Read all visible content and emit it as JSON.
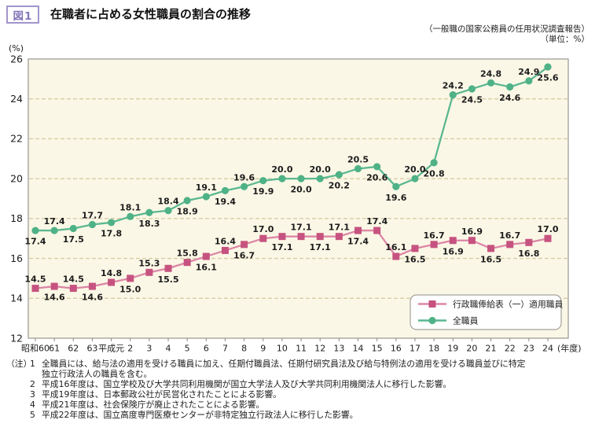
{
  "header": {
    "fig_label": "図1",
    "title": "在職者に占める女性職員の割合の推移",
    "source": "（一般職の国家公務員の任用状況調査報告）",
    "unit_note": "（単位：%）"
  },
  "chart_data": {
    "type": "line",
    "title": "在職者に占める女性職員の割合の推移",
    "categories": [
      "昭和60",
      "61",
      "62",
      "63",
      "平成元",
      "2",
      "3",
      "4",
      "5",
      "6",
      "7",
      "8",
      "9",
      "10",
      "11",
      "12",
      "13",
      "14",
      "15",
      "16",
      "17",
      "18",
      "19",
      "20",
      "21",
      "22",
      "23",
      "24"
    ],
    "x_axis_suffix": "(年度)",
    "y_unit_label": "(%)",
    "ylim": [
      12,
      26
    ],
    "y_ticks": [
      12,
      14,
      16,
      18,
      20,
      22,
      24,
      26
    ],
    "grid": "horizontal-dashed",
    "legend_position": "inside-bottom-right",
    "colors": {
      "plot_background": "#fbf7e6",
      "plot_border": "#9a978f",
      "grid_line": "#d6cca6",
      "tick": "#8a8a84",
      "label_text": "#1c1c1c",
      "legend_border": "#a5a29b",
      "legend_background": "#ffffff"
    },
    "series": [
      {
        "name": "行政職俸給表（一）適用職員",
        "marker": "square",
        "marker_color": "#c6537f",
        "line_color": "#dc86a6",
        "values": [
          14.5,
          14.6,
          14.5,
          14.6,
          14.8,
          15.0,
          15.3,
          15.5,
          15.8,
          16.1,
          16.4,
          16.7,
          17.0,
          17.1,
          17.1,
          17.1,
          17.1,
          17.4,
          17.4,
          16.1,
          16.5,
          16.7,
          16.9,
          16.9,
          16.5,
          16.7,
          16.8,
          17.0
        ],
        "label_side": [
          "a",
          "b",
          "a",
          "b",
          "a",
          "b",
          "a",
          "b",
          "a",
          "b",
          "a",
          "b",
          "a",
          "b",
          "a",
          "b",
          "a",
          "b",
          "a",
          "a",
          "b",
          "a",
          "b",
          "a",
          "b",
          "a",
          "b",
          "a"
        ]
      },
      {
        "name": "全職員",
        "marker": "circle",
        "marker_color": "#4fb287",
        "line_color": "#5ab890",
        "values": [
          17.4,
          17.4,
          17.5,
          17.7,
          17.8,
          18.1,
          18.3,
          18.4,
          18.9,
          19.1,
          19.4,
          19.6,
          19.9,
          20.0,
          20.0,
          20.0,
          20.2,
          20.5,
          20.6,
          19.6,
          20.0,
          20.8,
          24.2,
          24.5,
          24.8,
          24.6,
          24.9,
          25.6
        ],
        "label_side": [
          "b",
          "a",
          "b",
          "a",
          "b",
          "a",
          "b",
          "a",
          "b",
          "a",
          "b",
          "a",
          "b",
          "a",
          "b",
          "a",
          "b",
          "a",
          "b",
          "b",
          "a",
          "b",
          "a",
          "b",
          "a",
          "b",
          "a",
          "b"
        ]
      }
    ]
  },
  "notes": {
    "label": "（注）",
    "items": [
      {
        "num": "1",
        "text": "全職員には、給与法の適用を受ける職員に加え、任期付職員法、任期付研究員法及び給与特例法の適用を受ける職員並びに特定独立行政法人の職員を含む。"
      },
      {
        "num": "2",
        "text": "平成16年度は、国立学校及び大学共同利用機関が国立大学法人及び大学共同利用機関法人に移行した影響。"
      },
      {
        "num": "3",
        "text": "平成19年度は、日本郵政公社が民営化されたことによる影響。"
      },
      {
        "num": "4",
        "text": "平成21年度は、社会保険庁が廃止されたことによる影響。"
      },
      {
        "num": "5",
        "text": "平成22年度は、国立高度専門医療センターが非特定独立行政法人に移行した影響。"
      }
    ]
  }
}
